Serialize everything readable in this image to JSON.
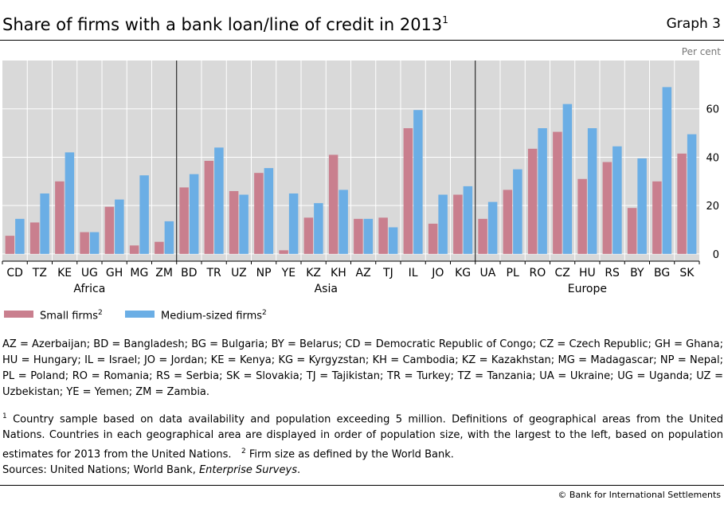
{
  "header": {
    "title": "Share of firms with a bank loan/line of credit in 2013",
    "title_note": "1",
    "graph_label": "Graph 3"
  },
  "chart_data": {
    "type": "bar",
    "unit_label": "Per cent",
    "categories": [
      "CD",
      "TZ",
      "KE",
      "UG",
      "GH",
      "MG",
      "ZM",
      "BD",
      "TR",
      "UZ",
      "NP",
      "YE",
      "KZ",
      "KH",
      "AZ",
      "TJ",
      "IL",
      "JO",
      "KG",
      "UA",
      "PL",
      "RO",
      "CZ",
      "HU",
      "RS",
      "BY",
      "BG",
      "SK"
    ],
    "groups": [
      {
        "name": "Africa",
        "start": 0,
        "end": 6
      },
      {
        "name": "Asia",
        "start": 7,
        "end": 18
      },
      {
        "name": "Europe",
        "start": 19,
        "end": 27
      }
    ],
    "series": [
      {
        "name": "Small firms",
        "note": "2",
        "color": "#c97f8e",
        "values": [
          7.5,
          13,
          30,
          9,
          19.5,
          3.5,
          5,
          27.5,
          38.5,
          26,
          33.5,
          1.5,
          15,
          41,
          14.5,
          15,
          52,
          12.5,
          24.5,
          14.5,
          26.5,
          43.5,
          50.5,
          31,
          38,
          19,
          30,
          41.5
        ]
      },
      {
        "name": "Medium-sized firms",
        "note": "2",
        "color": "#6baee5",
        "values": [
          14.5,
          25,
          42,
          9,
          22.5,
          32.5,
          13.5,
          33,
          44,
          24.5,
          35.5,
          25,
          21,
          26.5,
          14.5,
          11,
          59.5,
          24.5,
          28,
          21.5,
          35,
          52,
          62,
          52,
          44.5,
          39.5,
          69,
          49.5
        ]
      }
    ],
    "y_ticks": [
      0,
      20,
      40,
      60
    ],
    "ylim": [
      -3,
      80
    ],
    "grid": true,
    "plot_background": "#d9d9d9",
    "legend_position": "bottom-left"
  },
  "footnotes": {
    "abbreviations": "AZ = Azerbaijan; BD = Bangladesh; BG = Bulgaria; BY = Belarus; CD = Democratic Republic of Congo; CZ = Czech Republic; GH = Ghana; HU = Hungary; IL = Israel; JO = Jordan; KE = Kenya; KG = Kyrgyzstan; KH = Cambodia; KZ = Kazakhstan; MG = Madagascar; NP = Nepal; PL = Poland; RO = Romania; RS = Serbia; SK = Slovakia; TJ = Tajikistan; TR = Turkey; TZ = Tanzania; UA = Ukraine; UG = Uganda; UZ = Uzbekistan; YE = Yemen; ZM = Zambia.",
    "note1_marker": "1",
    "note1_text": "Country sample based on data availability and population exceeding 5 million. Definitions of geographical areas from the United Nations. Countries in each geographical area are displayed in order of population size, with the largest to the left, based on population estimates for 2013 from the United Nations.",
    "note2_marker": "2",
    "note2_text": "Firm size as defined by the World Bank.",
    "sources_prefix": "Sources: United Nations; World Bank, ",
    "sources_italic": "Enterprise Surveys",
    "sources_suffix": ".",
    "copyright": "© Bank for International Settlements"
  }
}
